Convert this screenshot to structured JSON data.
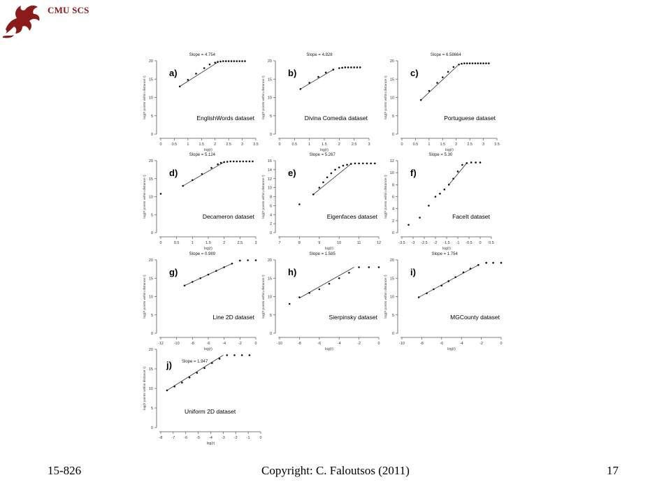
{
  "header": {
    "org": "CMU SCS",
    "logo_icon": "dragon-logo-icon",
    "logo_color": "#8b1a1a"
  },
  "footer": {
    "course": "15-826",
    "copyright": "Copyright: C. Faloutsos (2011)",
    "page": "17"
  },
  "chart_data": [
    {
      "type": "line",
      "panel": "a)",
      "slope_label": "Slope = 4.754",
      "dataset_label": "EnglishWords dataset",
      "xlabel": "log(r)",
      "ylabel": "log(# points within distance r)",
      "xlim": [
        0,
        3.5
      ],
      "ylim": [
        0,
        20
      ],
      "xticks": [
        "0",
        "0.5",
        "1",
        "1.5",
        "2",
        "2.5",
        "3",
        "3.5"
      ],
      "yticks": [
        "0",
        "5",
        "10",
        "15",
        "20"
      ],
      "x": [
        0.7,
        1.0,
        1.3,
        1.6,
        1.8,
        2.0,
        2.1,
        2.2,
        2.3,
        2.4,
        2.5,
        2.6,
        2.7,
        2.8,
        2.9,
        3.0,
        3.1
      ],
      "y": [
        13,
        14.8,
        16.5,
        18,
        19,
        19.5,
        19.7,
        19.8,
        19.9,
        19.9,
        19.9,
        19.9,
        19.9,
        19.9,
        19.9,
        19.9,
        19.9
      ],
      "fit_x": [
        0.7,
        2.1
      ],
      "fit_y": [
        13,
        19.6
      ]
    },
    {
      "type": "line",
      "panel": "b)",
      "slope_label": "Slope = 4.828",
      "dataset_label": "Divina Comedia dataset",
      "xlabel": "log(r)",
      "ylabel": "log(# points within distance r)",
      "xlim": [
        0,
        3
      ],
      "ylim": [
        0,
        20
      ],
      "xticks": [
        "0",
        "0.5",
        "1",
        "1.5",
        "2",
        "2.5",
        "3"
      ],
      "yticks": [
        "0",
        "5",
        "10",
        "15",
        "20"
      ],
      "x": [
        0.7,
        1.0,
        1.3,
        1.55,
        1.8,
        2.0,
        2.1,
        2.2,
        2.3,
        2.4,
        2.5,
        2.6,
        2.7
      ],
      "y": [
        12.3,
        14,
        15.6,
        16.8,
        17.6,
        18,
        18.1,
        18.2,
        18.2,
        18.2,
        18.2,
        18.2,
        18.2
      ],
      "fit_x": [
        0.7,
        1.8
      ],
      "fit_y": [
        12.3,
        17.6
      ]
    },
    {
      "type": "line",
      "panel": "c)",
      "slope_label": "Slope = 6.58664",
      "dataset_label": "Portuguese dataset",
      "xlabel": "log(r)",
      "ylabel": "log(# points within distance r)",
      "xlim": [
        0,
        3.5
      ],
      "ylim": [
        0,
        20
      ],
      "xticks": [
        "0",
        "0.5",
        "1",
        "1.5",
        "2",
        "2.5",
        "3",
        "3.5"
      ],
      "yticks": [
        "0",
        "5",
        "10",
        "15",
        "20"
      ],
      "x": [
        0.7,
        1.0,
        1.3,
        1.5,
        1.7,
        1.9,
        2.1,
        2.2,
        2.3,
        2.4,
        2.5,
        2.6,
        2.7,
        2.8,
        2.9,
        3.0,
        3.1,
        3.2
      ],
      "y": [
        9.3,
        11.8,
        14,
        15.5,
        17,
        18.3,
        19,
        19.2,
        19.3,
        19.3,
        19.3,
        19.3,
        19.3,
        19.3,
        19.3,
        19.3,
        19.3,
        19.3
      ],
      "fit_x": [
        0.7,
        2.1
      ],
      "fit_y": [
        9.3,
        19
      ]
    },
    {
      "type": "line",
      "panel": "d)",
      "slope_label": "Slope = 5.124",
      "dataset_label": "Decameron dataset",
      "xlabel": "log(r)",
      "ylabel": "log(# points within distance r)",
      "xlim": [
        0,
        3
      ],
      "ylim": [
        0,
        20
      ],
      "xticks": [
        "0",
        "0.5",
        "1",
        "1.5",
        "2",
        "2.5",
        "3"
      ],
      "yticks": [
        "0",
        "5",
        "10",
        "15",
        "20"
      ],
      "x": [
        0,
        0.7,
        1.0,
        1.3,
        1.6,
        1.8,
        1.9,
        2.0,
        2.1,
        2.2,
        2.3,
        2.4,
        2.5,
        2.6,
        2.7,
        2.8,
        2.9
      ],
      "y": [
        10.8,
        13,
        14.6,
        16.3,
        18,
        19,
        19.4,
        19.6,
        19.7,
        19.8,
        19.8,
        19.8,
        19.8,
        19.8,
        19.8,
        19.8,
        19.8
      ],
      "fit_x": [
        0.7,
        2.0
      ],
      "fit_y": [
        13,
        19.6
      ]
    },
    {
      "type": "line",
      "panel": "e)",
      "slope_label": "Slope = 5.267",
      "dataset_label": "Eigenfaces dataset",
      "xlabel": "log(r)",
      "ylabel": "log(# points within distance r)",
      "xlim": [
        7,
        12
      ],
      "ylim": [
        0,
        16
      ],
      "xticks": [
        "7",
        "8",
        "9",
        "10",
        "11",
        "12"
      ],
      "yticks": [
        "0",
        "2",
        "4",
        "6",
        "8",
        "10",
        "12",
        "14",
        "16"
      ],
      "x": [
        8.0,
        8.7,
        9.0,
        9.2,
        9.4,
        9.6,
        9.8,
        10.0,
        10.2,
        10.4,
        10.6,
        10.8,
        11.0,
        11.2,
        11.4,
        11.6,
        11.8
      ],
      "y": [
        6.3,
        8.5,
        10,
        11.2,
        12.3,
        13.2,
        14,
        14.5,
        14.9,
        15.1,
        15.3,
        15.4,
        15.4,
        15.4,
        15.4,
        15.4,
        15.4
      ],
      "fit_x": [
        8.7,
        10.6
      ],
      "fit_y": [
        8.5,
        15.3
      ]
    },
    {
      "type": "line",
      "panel": "f)",
      "slope_label": "Slope = 5.30",
      "dataset_label": "FaceIt dataset",
      "xlabel": "log(r)",
      "ylabel": "log(# points within distance r)",
      "xlim": [
        -3.5,
        0.5
      ],
      "ylim": [
        0,
        12
      ],
      "xticks": [
        "-3.5",
        "-3",
        "-2.5",
        "-2",
        "-1.5",
        "-1",
        "-0.5",
        "0",
        "0.5"
      ],
      "yticks": [
        "0",
        "2",
        "4",
        "6",
        "8",
        "10",
        "12"
      ],
      "x": [
        -3.2,
        -2.7,
        -2.3,
        -2.0,
        -1.8,
        -1.6,
        -1.4,
        -1.2,
        -1.0,
        -0.8,
        -0.6,
        -0.4,
        -0.2,
        0.0
      ],
      "y": [
        1.3,
        2.5,
        4.5,
        6,
        6.5,
        7.2,
        8,
        9,
        10.2,
        11.3,
        11.6,
        11.7,
        11.7,
        11.7
      ],
      "fit_x": [
        -1.4,
        -0.6
      ],
      "fit_y": [
        8,
        11.6
      ]
    },
    {
      "type": "line",
      "panel": "g)",
      "slope_label": "Slope = 0.989",
      "dataset_label": "Line 2D dataset",
      "xlabel": "log(r)",
      "ylabel": "log(# points within distance r)",
      "xlim": [
        -12,
        0
      ],
      "ylim": [
        0,
        20
      ],
      "xticks": [
        "-12",
        "-10",
        "-8",
        "-6",
        "-4",
        "-2",
        "0"
      ],
      "yticks": [
        "0",
        "5",
        "10",
        "15",
        "20"
      ],
      "x": [
        -9,
        -8,
        -7,
        -6,
        -5,
        -4,
        -3,
        -2,
        -1,
        0
      ],
      "y": [
        13,
        14,
        15,
        16,
        17,
        18,
        19,
        19.8,
        19.9,
        19.9
      ],
      "fit_x": [
        -9,
        -3
      ],
      "fit_y": [
        13,
        19
      ]
    },
    {
      "type": "line",
      "panel": "h)",
      "slope_label": "Slope = 1.585",
      "dataset_label": "Sierpinsky dataset",
      "xlabel": "log(r)",
      "ylabel": "log(# points within distance r)",
      "xlim": [
        -10,
        0
      ],
      "ylim": [
        0,
        20
      ],
      "xticks": [
        "-10",
        "-8",
        "-6",
        "-4",
        "-2",
        "0"
      ],
      "yticks": [
        "0",
        "5",
        "10",
        "15",
        "20"
      ],
      "x": [
        -9,
        -8,
        -7,
        -6,
        -5,
        -4,
        -3,
        -2,
        -1,
        0
      ],
      "y": [
        8,
        9.8,
        11,
        12,
        13.5,
        15,
        16.5,
        18,
        18,
        18
      ],
      "fit_x": [
        -8,
        -2.5
      ],
      "fit_y": [
        9.6,
        18
      ]
    },
    {
      "type": "line",
      "panel": "i)",
      "slope_label": "Slope = 1.754",
      "dataset_label": "MGCounty dataset",
      "xlabel": "log(r)",
      "ylabel": "log(# points within distance r)",
      "xlim": [
        -10,
        0
      ],
      "ylim": [
        0,
        20
      ],
      "xticks": [
        "-10",
        "-8",
        "-6",
        "-4",
        "-2",
        "0"
      ],
      "yticks": [
        "0",
        "5",
        "10",
        "15",
        "20"
      ],
      "x": [
        -8.3,
        -7.5,
        -6.8,
        -6,
        -5.3,
        -4.6,
        -3.8,
        -3.1,
        -2.3,
        -1.5,
        -0.8,
        0
      ],
      "y": [
        9.8,
        10.9,
        12,
        13,
        14.2,
        15.3,
        16.6,
        17.6,
        18.6,
        19.2,
        19.2,
        19.2
      ],
      "fit_x": [
        -8.3,
        -2.3
      ],
      "fit_y": [
        9.8,
        18.6
      ]
    },
    {
      "type": "line",
      "panel": "j)",
      "slope_label": "Slope = 1.947",
      "dataset_label": "Uniform 2D dataset",
      "xlabel": "log(r)",
      "ylabel": "log(# points within distance r)",
      "xlim": [
        -8,
        0
      ],
      "ylim": [
        0,
        20
      ],
      "xticks": [
        "-8",
        "-7",
        "-6",
        "-5",
        "-4",
        "-3",
        "-2",
        "-1",
        "0"
      ],
      "yticks": [
        "0",
        "5",
        "10",
        "15",
        "20"
      ],
      "x": [
        -7.5,
        -6.9,
        -6.3,
        -5.7,
        -5.1,
        -4.5,
        -3.9,
        -3.3,
        -2.7,
        -2.1,
        -1.5,
        -0.9
      ],
      "y": [
        9.5,
        10.5,
        11.5,
        12.8,
        14,
        15.2,
        16.5,
        17.6,
        18.5,
        18.5,
        18.5,
        18.5
      ],
      "fit_x": [
        -7.5,
        -3.0
      ],
      "fit_y": [
        9.5,
        18.5
      ]
    }
  ]
}
